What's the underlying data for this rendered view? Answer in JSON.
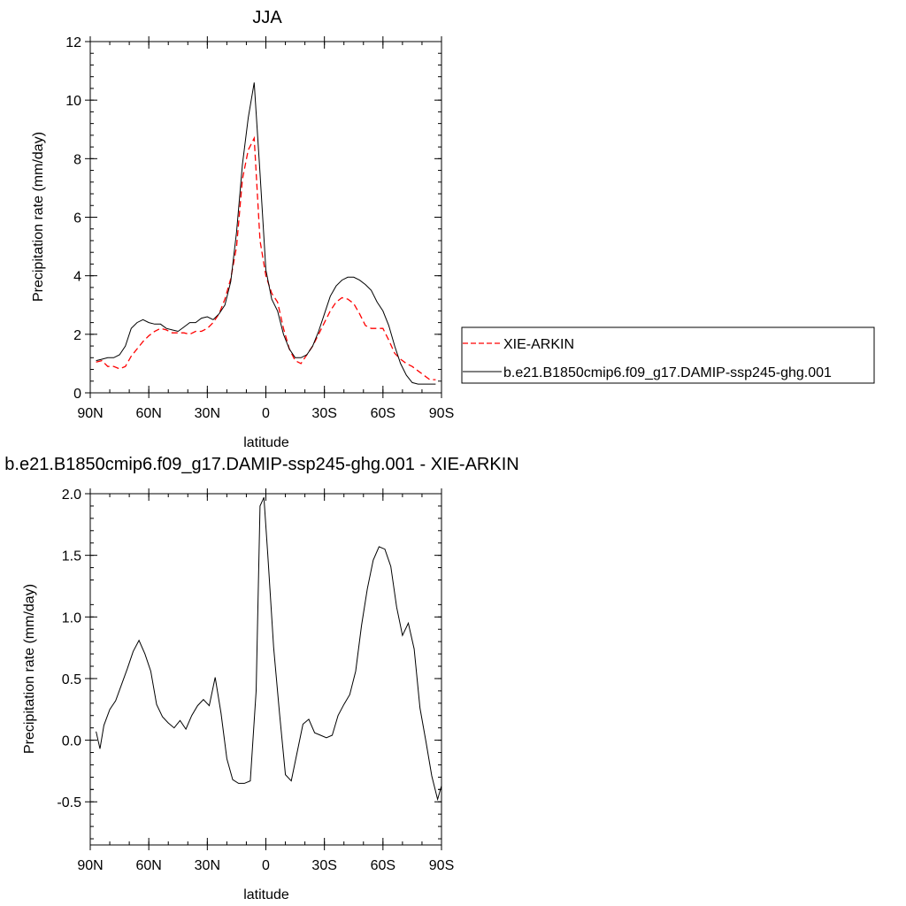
{
  "chart_data": [
    {
      "type": "line",
      "title": "JJA",
      "xlabel": "latitude",
      "ylabel": "Precipitation rate (mm/day)",
      "xlim": [
        90,
        -90
      ],
      "ylim": [
        0,
        12
      ],
      "x_ticks": [
        90,
        60,
        30,
        0,
        -30,
        -60,
        -90
      ],
      "x_tick_labels": [
        "90N",
        "60N",
        "30N",
        "0",
        "30S",
        "60S",
        "90S"
      ],
      "y_ticks": [
        0,
        2,
        4,
        6,
        8,
        10,
        12
      ],
      "y_tick_labels": [
        "0",
        "2",
        "4",
        "6",
        "8",
        "10",
        "12"
      ],
      "grid": false,
      "legend_position": "right",
      "series": [
        {
          "name": "XIE-ARKIN",
          "color": "#ff0000",
          "dash": "dashed",
          "points": [
            [
              87,
              1.05
            ],
            [
              84,
              1.1
            ],
            [
              81,
              0.9
            ],
            [
              78,
              0.9
            ],
            [
              75,
              0.82
            ],
            [
              72,
              0.9
            ],
            [
              69,
              1.25
            ],
            [
              66,
              1.5
            ],
            [
              63,
              1.75
            ],
            [
              60,
              1.95
            ],
            [
              57,
              2.1
            ],
            [
              54,
              2.2
            ],
            [
              51,
              2.15
            ],
            [
              48,
              2.05
            ],
            [
              45,
              2.05
            ],
            [
              42,
              2.05
            ],
            [
              39,
              2.0
            ],
            [
              36,
              2.1
            ],
            [
              33,
              2.1
            ],
            [
              30,
              2.2
            ],
            [
              27,
              2.4
            ],
            [
              24,
              2.7
            ],
            [
              21,
              3.2
            ],
            [
              18,
              3.9
            ],
            [
              15,
              5.0
            ],
            [
              12,
              7.3
            ],
            [
              9,
              8.3
            ],
            [
              6,
              8.7
            ],
            [
              3,
              5.2
            ],
            [
              0,
              4.0
            ],
            [
              -3,
              3.4
            ],
            [
              -6,
              3.1
            ],
            [
              -9,
              2.2
            ],
            [
              -12,
              1.5
            ],
            [
              -15,
              1.1
            ],
            [
              -18,
              1.0
            ],
            [
              -21,
              1.3
            ],
            [
              -24,
              1.6
            ],
            [
              -27,
              2.0
            ],
            [
              -30,
              2.4
            ],
            [
              -33,
              2.8
            ],
            [
              -36,
              3.1
            ],
            [
              -39,
              3.25
            ],
            [
              -42,
              3.2
            ],
            [
              -45,
              3.05
            ],
            [
              -48,
              2.7
            ],
            [
              -51,
              2.3
            ],
            [
              -54,
              2.2
            ],
            [
              -57,
              2.2
            ],
            [
              -60,
              2.2
            ],
            [
              -63,
              1.8
            ],
            [
              -66,
              1.35
            ],
            [
              -69,
              1.15
            ],
            [
              -72,
              1.0
            ],
            [
              -75,
              0.9
            ],
            [
              -78,
              0.75
            ],
            [
              -81,
              0.6
            ],
            [
              -84,
              0.45
            ],
            [
              -87,
              0.45
            ]
          ]
        },
        {
          "name": "b.e21.B1850cmip6.f09_g17.DAMIP-ssp245-ghg.001",
          "color": "#000000",
          "dash": "solid",
          "points": [
            [
              87,
              1.1
            ],
            [
              84,
              1.15
            ],
            [
              81,
              1.2
            ],
            [
              78,
              1.2
            ],
            [
              75,
              1.3
            ],
            [
              72,
              1.6
            ],
            [
              69,
              2.2
            ],
            [
              66,
              2.4
            ],
            [
              63,
              2.5
            ],
            [
              60,
              2.4
            ],
            [
              57,
              2.35
            ],
            [
              54,
              2.35
            ],
            [
              51,
              2.2
            ],
            [
              48,
              2.15
            ],
            [
              45,
              2.1
            ],
            [
              42,
              2.25
            ],
            [
              39,
              2.4
            ],
            [
              36,
              2.4
            ],
            [
              33,
              2.55
            ],
            [
              30,
              2.6
            ],
            [
              27,
              2.5
            ],
            [
              24,
              2.7
            ],
            [
              21,
              3.0
            ],
            [
              18,
              3.8
            ],
            [
              15,
              5.5
            ],
            [
              12,
              7.8
            ],
            [
              9,
              9.4
            ],
            [
              6,
              10.6
            ],
            [
              3,
              7.5
            ],
            [
              0,
              4.2
            ],
            [
              -3,
              3.2
            ],
            [
              -6,
              2.8
            ],
            [
              -9,
              2.0
            ],
            [
              -12,
              1.5
            ],
            [
              -15,
              1.2
            ],
            [
              -18,
              1.2
            ],
            [
              -21,
              1.3
            ],
            [
              -24,
              1.6
            ],
            [
              -27,
              2.1
            ],
            [
              -30,
              2.7
            ],
            [
              -33,
              3.3
            ],
            [
              -36,
              3.65
            ],
            [
              -39,
              3.85
            ],
            [
              -42,
              3.95
            ],
            [
              -45,
              3.95
            ],
            [
              -48,
              3.85
            ],
            [
              -51,
              3.7
            ],
            [
              -54,
              3.5
            ],
            [
              -57,
              3.1
            ],
            [
              -60,
              2.8
            ],
            [
              -63,
              2.3
            ],
            [
              -66,
              1.6
            ],
            [
              -69,
              1.0
            ],
            [
              -72,
              0.6
            ],
            [
              -75,
              0.35
            ],
            [
              -78,
              0.3
            ],
            [
              -81,
              0.3
            ],
            [
              -84,
              0.3
            ],
            [
              -87,
              0.3
            ]
          ]
        }
      ]
    },
    {
      "type": "line",
      "title": "b.e21.B1850cmip6.f09_g17.DAMIP-ssp245-ghg.001 - XIE-ARKIN",
      "xlabel": "latitude",
      "ylabel": "Precipitation rate (mm/day)",
      "xlim": [
        90,
        -90
      ],
      "ylim": [
        -0.85,
        2.0
      ],
      "x_ticks": [
        90,
        60,
        30,
        0,
        -30,
        -60,
        -90
      ],
      "x_tick_labels": [
        "90N",
        "60N",
        "30N",
        "0",
        "30S",
        "60S",
        "90S"
      ],
      "y_ticks": [
        -0.5,
        0,
        0.5,
        1.0,
        1.5,
        2.0
      ],
      "y_tick_labels": [
        "-0.5",
        "0.0",
        "0.5",
        "1.0",
        "1.5",
        "2.0"
      ],
      "grid": false,
      "series": [
        {
          "color": "#000000",
          "dash": "solid",
          "points": [
            [
              87,
              0.07
            ],
            [
              85,
              -0.07
            ],
            [
              83,
              0.12
            ],
            [
              80,
              0.25
            ],
            [
              77,
              0.32
            ],
            [
              74,
              0.45
            ],
            [
              71,
              0.58
            ],
            [
              68,
              0.72
            ],
            [
              65,
              0.81
            ],
            [
              62,
              0.7
            ],
            [
              59,
              0.56
            ],
            [
              56,
              0.29
            ],
            [
              53,
              0.19
            ],
            [
              50,
              0.14
            ],
            [
              47,
              0.1
            ],
            [
              44,
              0.16
            ],
            [
              41,
              0.09
            ],
            [
              38,
              0.2
            ],
            [
              35,
              0.28
            ],
            [
              32,
              0.33
            ],
            [
              29,
              0.28
            ],
            [
              26,
              0.51
            ],
            [
              23,
              0.22
            ],
            [
              20,
              -0.15
            ],
            [
              17,
              -0.32
            ],
            [
              14,
              -0.35
            ],
            [
              11,
              -0.35
            ],
            [
              8,
              -0.33
            ],
            [
              5,
              0.4
            ],
            [
              3,
              1.9
            ],
            [
              1,
              1.97
            ],
            [
              -1,
              1.5
            ],
            [
              -4,
              0.75
            ],
            [
              -7,
              0.22
            ],
            [
              -10,
              -0.28
            ],
            [
              -13,
              -0.33
            ],
            [
              -16,
              -0.1
            ],
            [
              -19,
              0.13
            ],
            [
              -22,
              0.17
            ],
            [
              -25,
              0.06
            ],
            [
              -28,
              0.04
            ],
            [
              -31,
              0.02
            ],
            [
              -34,
              0.04
            ],
            [
              -37,
              0.2
            ],
            [
              -40,
              0.29
            ],
            [
              -43,
              0.37
            ],
            [
              -46,
              0.56
            ],
            [
              -49,
              0.93
            ],
            [
              -52,
              1.23
            ],
            [
              -55,
              1.46
            ],
            [
              -58,
              1.57
            ],
            [
              -61,
              1.55
            ],
            [
              -64,
              1.41
            ],
            [
              -67,
              1.08
            ],
            [
              -70,
              0.85
            ],
            [
              -73,
              0.95
            ],
            [
              -76,
              0.74
            ],
            [
              -79,
              0.26
            ],
            [
              -82,
              -0.01
            ],
            [
              -85,
              -0.29
            ],
            [
              -88,
              -0.48
            ],
            [
              -90,
              -0.37
            ],
            [
              -92,
              -0.16
            ],
            [
              -94,
              -0.2
            ]
          ]
        }
      ]
    }
  ]
}
